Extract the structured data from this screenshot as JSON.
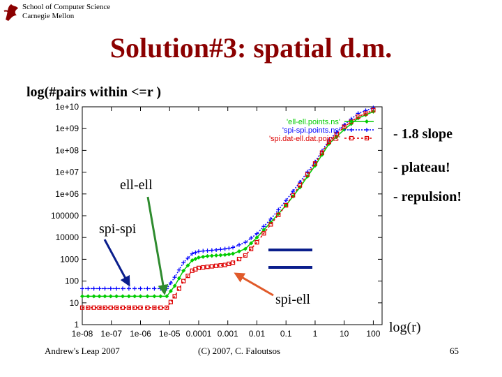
{
  "header": {
    "school": "School of Computer Science",
    "university": "Carnegie Mellon",
    "title": "Solution#3: spatial d.m."
  },
  "notes": {
    "slope": "- 1.8 slope",
    "plateau": "- plateau!",
    "repulsion": "- repulsion!"
  },
  "annotations": {
    "ell": "ell-ell",
    "spi": "spi-spi",
    "spiell": "spi-ell"
  },
  "footer": {
    "left": "Andrew's Leap 2007",
    "middle": "(C) 2007, C. Faloutsos",
    "page": "65"
  },
  "colors": {
    "title": "#8b0000",
    "ell_series": "#00cc00",
    "spi_series": "#0000ff",
    "spiell_series": "#dd0000",
    "arrow_blue": "#0a1e8c",
    "arrow_green": "#2e8b2e",
    "arrow_orange": "#e05a2a"
  },
  "chart_data": {
    "type": "line",
    "ylabel": "log(#pairs within <=r )",
    "xlabel": "log(r)",
    "x_scale": "log",
    "y_scale": "log",
    "xlim": [
      1e-08,
      200
    ],
    "ylim": [
      1,
      10000000000.0
    ],
    "grid": false,
    "legend_position": "top-right",
    "x_tick_labels": [
      "1e-08",
      "1e-07",
      "1e-06",
      "1e-05",
      "0.0001",
      "0.001",
      "0.01",
      "0.1",
      "1",
      "10",
      "100"
    ],
    "y_tick_labels": [
      "1",
      "10",
      "100",
      "1000",
      "10000",
      "100000",
      "1e+06",
      "1e+07",
      "1e+08",
      "1e+09",
      "1e+10"
    ],
    "series": [
      {
        "name": "'ell-ell.points.ns'",
        "marker": "diamond",
        "x": [
          1e-08,
          2.5e-08,
          6e-08,
          1.5e-07,
          4e-07,
          1e-06,
          3e-06,
          8e-06,
          1.5e-05,
          3e-05,
          6e-05,
          0.0001,
          0.0002,
          0.0004,
          0.0008,
          0.0015,
          0.004,
          0.01,
          0.03,
          0.1,
          0.3,
          1,
          3,
          10,
          30,
          100
        ],
        "y": [
          20,
          20,
          20,
          20,
          20,
          20,
          20,
          20,
          60,
          300,
          900,
          1200,
          1400,
          1500,
          1600,
          1800,
          3000,
          10000,
          50000,
          300000,
          2000000,
          20000000,
          200000000,
          900000000,
          3000000000,
          6000000000
        ]
      },
      {
        "name": "'spi-spi.points.ns'",
        "marker": "plus",
        "x": [
          1e-08,
          2.5e-08,
          6e-08,
          1.5e-07,
          4e-07,
          1e-06,
          3e-06,
          8e-06,
          1.5e-05,
          3e-05,
          6e-05,
          0.0001,
          0.0002,
          0.0004,
          0.0008,
          0.0015,
          0.004,
          0.01,
          0.03,
          0.1,
          0.3,
          1,
          3,
          10,
          30,
          100
        ],
        "y": [
          45,
          45,
          45,
          45,
          45,
          45,
          45,
          45,
          150,
          700,
          1800,
          2300,
          2500,
          2700,
          3000,
          3500,
          6000,
          15000,
          70000,
          500000,
          3500000,
          30000000,
          300000000,
          1500000000,
          5000000000,
          9000000000
        ]
      },
      {
        "name": "'spi.dat-ell.dat.points'",
        "marker": "square",
        "x": [
          1e-08,
          2.5e-08,
          6e-08,
          1.5e-07,
          4e-07,
          1e-06,
          3e-06,
          8e-06,
          1.5e-05,
          3e-05,
          6e-05,
          0.0001,
          0.0002,
          0.0004,
          0.0008,
          0.0015,
          0.004,
          0.01,
          0.03,
          0.1,
          0.3,
          1,
          3,
          10,
          30,
          100
        ],
        "y": [
          6,
          6,
          6,
          6,
          6,
          6,
          6,
          6,
          20,
          100,
          300,
          400,
          450,
          500,
          550,
          700,
          1500,
          6000,
          40000,
          300000,
          2500000,
          25000000,
          250000000,
          1200000000,
          3500000000,
          7000000000
        ]
      }
    ]
  }
}
